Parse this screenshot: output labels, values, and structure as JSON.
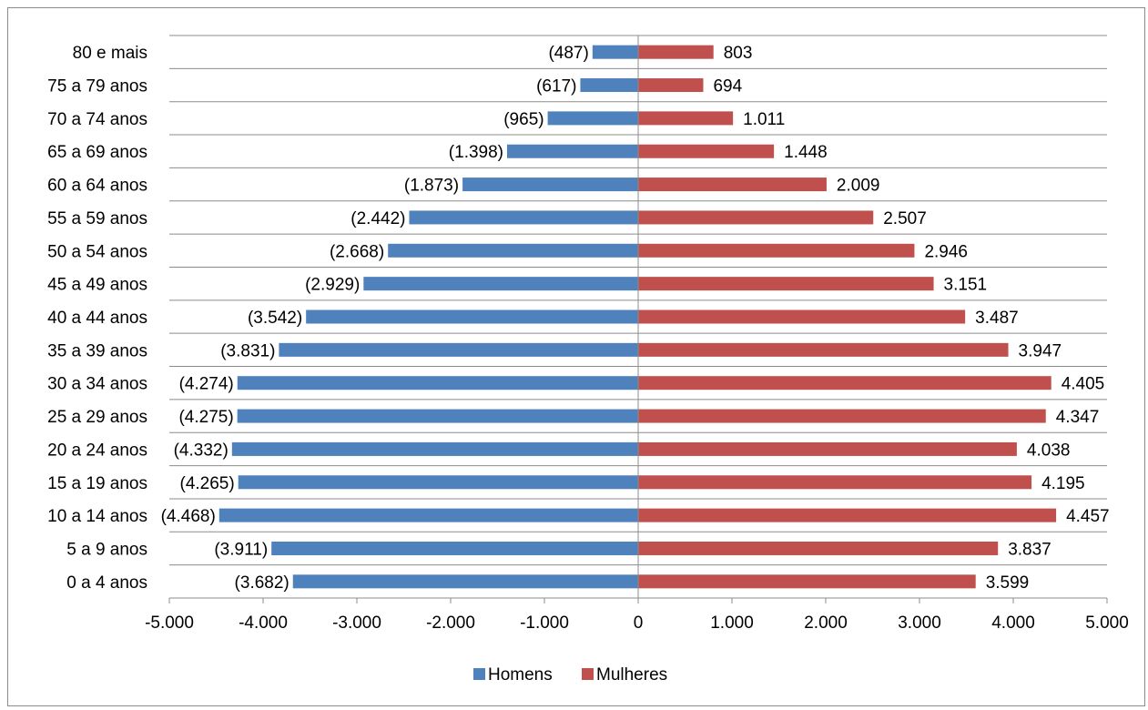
{
  "chart_data": {
    "type": "bar",
    "orientation": "horizontal",
    "categories": [
      "80 e mais",
      "75 a 79 anos",
      "70 a 74 anos",
      "65 a 69 anos",
      "60 a 64 anos",
      "55 a 59 anos",
      "50 a 54 anos",
      "45 a 49 anos",
      "40 a 44 anos",
      "35 a 39 anos",
      "30 a 34 anos",
      "25 a 29 anos",
      "20 a 24 anos",
      "15 a 19 anos",
      "10 a 14 anos",
      "5 a 9 anos",
      "0 a 4 anos"
    ],
    "series": [
      {
        "name": "Homens",
        "color": "#4f81bd",
        "values": [
          -487,
          -617,
          -965,
          -1398,
          -1873,
          -2442,
          -2668,
          -2929,
          -3542,
          -3831,
          -4274,
          -4275,
          -4332,
          -4265,
          -4468,
          -3911,
          -3682
        ],
        "labels": [
          "(487)",
          "(617)",
          "(965)",
          "(1.398)",
          "(1.873)",
          "(2.442)",
          "(2.668)",
          "(2.929)",
          "(3.542)",
          "(3.831)",
          "(4.274)",
          "(4.275)",
          "(4.332)",
          "(4.265)",
          "(4.468)",
          "(3.911)",
          "(3.682)"
        ]
      },
      {
        "name": "Mulheres",
        "color": "#c0504d",
        "values": [
          803,
          694,
          1011,
          1448,
          2009,
          2507,
          2946,
          3151,
          3487,
          3947,
          4405,
          4347,
          4038,
          4195,
          4457,
          3837,
          3599
        ],
        "labels": [
          "803",
          "694",
          "1.011",
          "1.448",
          "2.009",
          "2.507",
          "2.946",
          "3.151",
          "3.487",
          "3.947",
          "4.405",
          "4.347",
          "4.038",
          "4.195",
          "4.457",
          "3.837",
          "3.599"
        ]
      }
    ],
    "xlim": [
      -5000,
      5000
    ],
    "xticks": [
      -5000,
      -4000,
      -3000,
      -2000,
      -1000,
      0,
      1000,
      2000,
      3000,
      4000,
      5000
    ],
    "xtick_labels": [
      "-5.000",
      "-4.000",
      "-3.000",
      "-2.000",
      "-1.000",
      "0",
      "1.000",
      "2.000",
      "3.000",
      "4.000",
      "5.000"
    ],
    "grid": "horizontal",
    "legend": "bottom"
  }
}
